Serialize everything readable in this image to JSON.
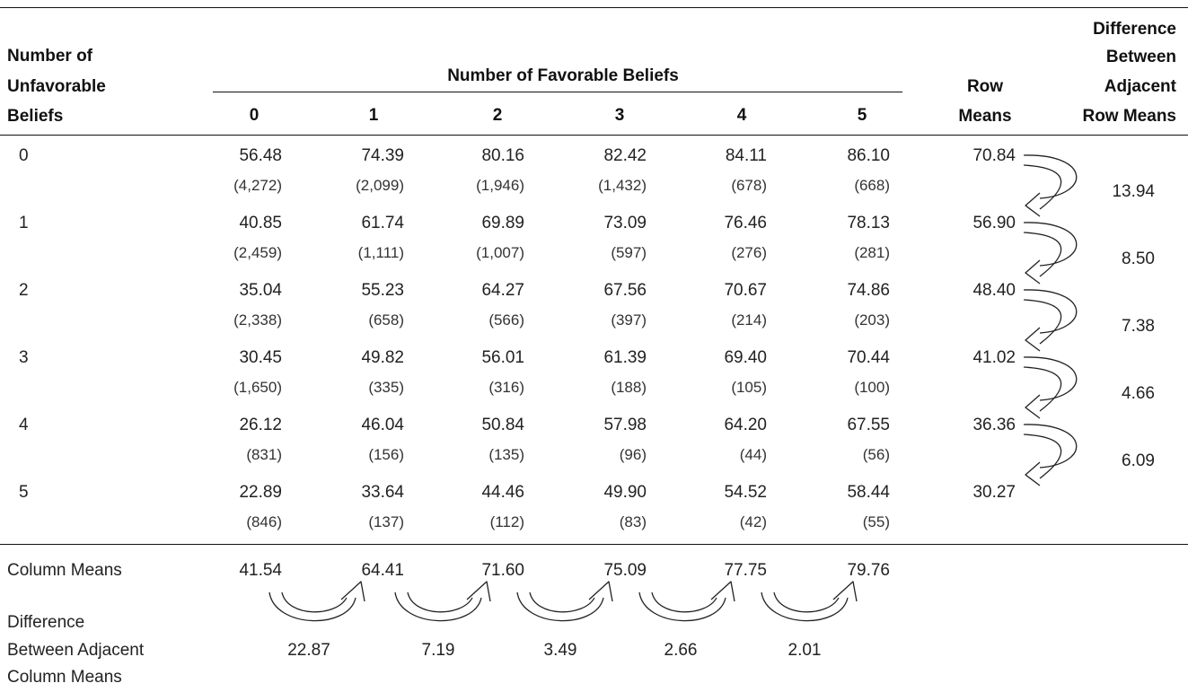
{
  "header": {
    "row_label": [
      "Number of",
      "Unfavorable",
      "Beliefs"
    ],
    "favorable_title": "Number of Favorable Beliefs",
    "col_labels": [
      "0",
      "1",
      "2",
      "3",
      "4",
      "5"
    ],
    "row_means_label": [
      "Row",
      "Means"
    ],
    "diff_label": [
      "Difference",
      "Between",
      "Adjacent",
      "Row Means"
    ]
  },
  "rows": [
    {
      "label": "0",
      "means": [
        "56.48",
        "74.39",
        "80.16",
        "82.42",
        "84.11",
        "86.10"
      ],
      "counts": [
        "(4,272)",
        "(2,099)",
        "(1,946)",
        "(1,432)",
        "(678)",
        "(668)"
      ],
      "row_mean": "70.84"
    },
    {
      "label": "1",
      "means": [
        "40.85",
        "61.74",
        "69.89",
        "73.09",
        "76.46",
        "78.13"
      ],
      "counts": [
        "(2,459)",
        "(1,111)",
        "(1,007)",
        "(597)",
        "(276)",
        "(281)"
      ],
      "row_mean": "56.90"
    },
    {
      "label": "2",
      "means": [
        "35.04",
        "55.23",
        "64.27",
        "67.56",
        "70.67",
        "74.86"
      ],
      "counts": [
        "(2,338)",
        "(658)",
        "(566)",
        "(397)",
        "(214)",
        "(203)"
      ],
      "row_mean": "48.40"
    },
    {
      "label": "3",
      "means": [
        "30.45",
        "49.82",
        "56.01",
        "61.39",
        "69.40",
        "70.44"
      ],
      "counts": [
        "(1,650)",
        "(335)",
        "(316)",
        "(188)",
        "(105)",
        "(100)"
      ],
      "row_mean": "41.02"
    },
    {
      "label": "4",
      "means": [
        "26.12",
        "46.04",
        "50.84",
        "57.98",
        "64.20",
        "67.55"
      ],
      "counts": [
        "(831)",
        "(156)",
        "(135)",
        "(96)",
        "(44)",
        "(56)"
      ],
      "row_mean": "36.36"
    },
    {
      "label": "5",
      "means": [
        "22.89",
        "33.64",
        "44.46",
        "49.90",
        "54.52",
        "58.44"
      ],
      "counts": [
        "(846)",
        "(137)",
        "(112)",
        "(83)",
        "(42)",
        "(55)"
      ],
      "row_mean": "30.27"
    }
  ],
  "row_diffs": [
    "13.94",
    "8.50",
    "7.38",
    "4.66",
    "6.09"
  ],
  "footer": {
    "column_means_label": "Column Means",
    "column_means": [
      "41.54",
      "64.41",
      "71.60",
      "75.09",
      "77.75",
      "79.76"
    ],
    "diff_label": [
      "Difference",
      "Between Adjacent",
      "Column Means"
    ],
    "column_diffs": [
      "22.87",
      "7.19",
      "3.49",
      "2.66",
      "2.01"
    ]
  }
}
